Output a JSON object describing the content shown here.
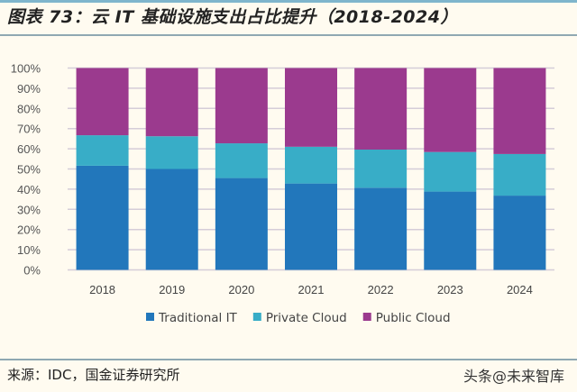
{
  "title": "图表 73：云 IT 基础设施支出占比提升（2018-2024）",
  "source": "来源：IDC，国金证券研究所",
  "watermark": "头条@未来智库",
  "chart_data": {
    "type": "bar",
    "stacked": true,
    "categories": [
      "2018",
      "2019",
      "2020",
      "2021",
      "2022",
      "2023",
      "2024"
    ],
    "series": [
      {
        "name": "Traditional IT",
        "color": "#2277bb",
        "values": [
          51.6,
          50.0,
          45.5,
          42.8,
          40.7,
          38.8,
          36.8
        ]
      },
      {
        "name": "Private Cloud",
        "color": "#38adc7",
        "values": [
          15.1,
          16.2,
          17.2,
          18.2,
          18.9,
          19.6,
          20.6
        ]
      },
      {
        "name": "Public Cloud",
        "color": "#9b3a8e",
        "values": [
          33.3,
          33.8,
          37.3,
          39.0,
          40.4,
          41.6,
          42.6
        ]
      }
    ],
    "ylim": [
      0,
      100
    ],
    "yticks": [
      "0%",
      "10%",
      "20%",
      "30%",
      "40%",
      "50%",
      "60%",
      "70%",
      "80%",
      "90%",
      "100%"
    ],
    "grid": true,
    "legend": "bottom"
  }
}
